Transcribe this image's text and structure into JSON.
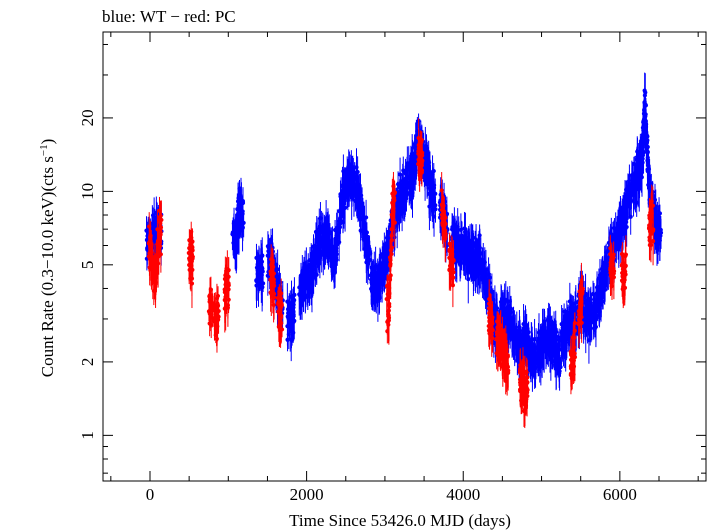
{
  "chart_data": {
    "type": "scatter",
    "title": "blue: WT − red: PC",
    "xlabel": "Time Since 53426.0 MJD (days)",
    "ylabel_prefix": "Count Rate (0.3−10.0 keV)(cts s",
    "ylabel_sup": "−1",
    "ylabel_suffix": ")",
    "xlim": [
      -600,
      7100
    ],
    "ylim": [
      0.65,
      45
    ],
    "yscale": "log",
    "x_ticks": [
      {
        "value": 0,
        "label": "0"
      },
      {
        "value": 2000,
        "label": "2000"
      },
      {
        "value": 4000,
        "label": "4000"
      },
      {
        "value": 6000,
        "label": "6000"
      }
    ],
    "y_ticks": [
      {
        "value": 1,
        "label": "1"
      },
      {
        "value": 2,
        "label": "2"
      },
      {
        "value": 5,
        "label": "5"
      },
      {
        "value": 10,
        "label": "10"
      },
      {
        "value": 20,
        "label": "20"
      }
    ],
    "y_minor_ticks": [
      0.7,
      0.8,
      0.9,
      3,
      4,
      6,
      7,
      8,
      9,
      30,
      40
    ],
    "x_minor_step": 500,
    "colors": {
      "wt": "#0000ff",
      "pc": "#ff0000",
      "axes": "#000000"
    },
    "series": [
      {
        "name": "WT",
        "color": "#0000ff",
        "envelope": [
          [
            0,
            6.5
          ],
          [
            100,
            6.8
          ],
          [
            1100,
            6.5
          ],
          [
            1150,
            8.5
          ],
          [
            1400,
            4.5
          ],
          [
            1550,
            5.5
          ],
          [
            1650,
            3.5
          ],
          [
            1800,
            3.0
          ],
          [
            1950,
            4.2
          ],
          [
            2050,
            4.5
          ],
          [
            2150,
            6.0
          ],
          [
            2250,
            6.5
          ],
          [
            2350,
            5.0
          ],
          [
            2450,
            9.0
          ],
          [
            2550,
            12.0
          ],
          [
            2650,
            10.0
          ],
          [
            2750,
            6.5
          ],
          [
            2850,
            4.0
          ],
          [
            2950,
            4.5
          ],
          [
            3050,
            6.0
          ],
          [
            3150,
            8.5
          ],
          [
            3250,
            10.0
          ],
          [
            3350,
            12.0
          ],
          [
            3420,
            16.0
          ],
          [
            3500,
            14.0
          ],
          [
            3600,
            10.0
          ],
          [
            3750,
            8.0
          ],
          [
            3900,
            6.0
          ],
          [
            4000,
            6.0
          ],
          [
            4100,
            5.5
          ],
          [
            4200,
            5.5
          ],
          [
            4300,
            4.0
          ],
          [
            4400,
            3.0
          ],
          [
            4500,
            2.8
          ],
          [
            4600,
            3.0
          ],
          [
            4700,
            2.3
          ],
          [
            4800,
            2.5
          ],
          [
            4900,
            2.0
          ],
          [
            5000,
            2.4
          ],
          [
            5100,
            2.6
          ],
          [
            5200,
            2.2
          ],
          [
            5300,
            2.6
          ],
          [
            5400,
            3.0
          ],
          [
            5500,
            3.5
          ],
          [
            5600,
            3.0
          ],
          [
            5700,
            3.3
          ],
          [
            5800,
            4.5
          ],
          [
            5900,
            6.0
          ],
          [
            6000,
            7.0
          ],
          [
            6100,
            9.0
          ],
          [
            6200,
            11.0
          ],
          [
            6280,
            13.0
          ],
          [
            6320,
            22.0
          ],
          [
            6380,
            10.0
          ],
          [
            6480,
            7.0
          ]
        ]
      },
      {
        "name": "PC",
        "color": "#ff0000",
        "envelope": [
          [
            10,
            5.8
          ],
          [
            70,
            4.3
          ],
          [
            120,
            7.0
          ],
          [
            520,
            5.5
          ],
          [
            780,
            3.5
          ],
          [
            850,
            3.0
          ],
          [
            980,
            4.0
          ],
          [
            1560,
            4.5
          ],
          [
            1660,
            3.2
          ],
          [
            3050,
            3.2
          ],
          [
            3100,
            9.0
          ],
          [
            3450,
            14.0
          ],
          [
            3750,
            7.5
          ],
          [
            3850,
            5.0
          ],
          [
            4350,
            3.0
          ],
          [
            4450,
            2.5
          ],
          [
            4500,
            2.2
          ],
          [
            4550,
            2.0
          ],
          [
            4750,
            1.7
          ],
          [
            4800,
            1.5
          ],
          [
            5400,
            2.0
          ],
          [
            5500,
            3.5
          ],
          [
            5900,
            5.0
          ],
          [
            6050,
            4.5
          ],
          [
            6400,
            7.5
          ]
        ]
      }
    ]
  }
}
